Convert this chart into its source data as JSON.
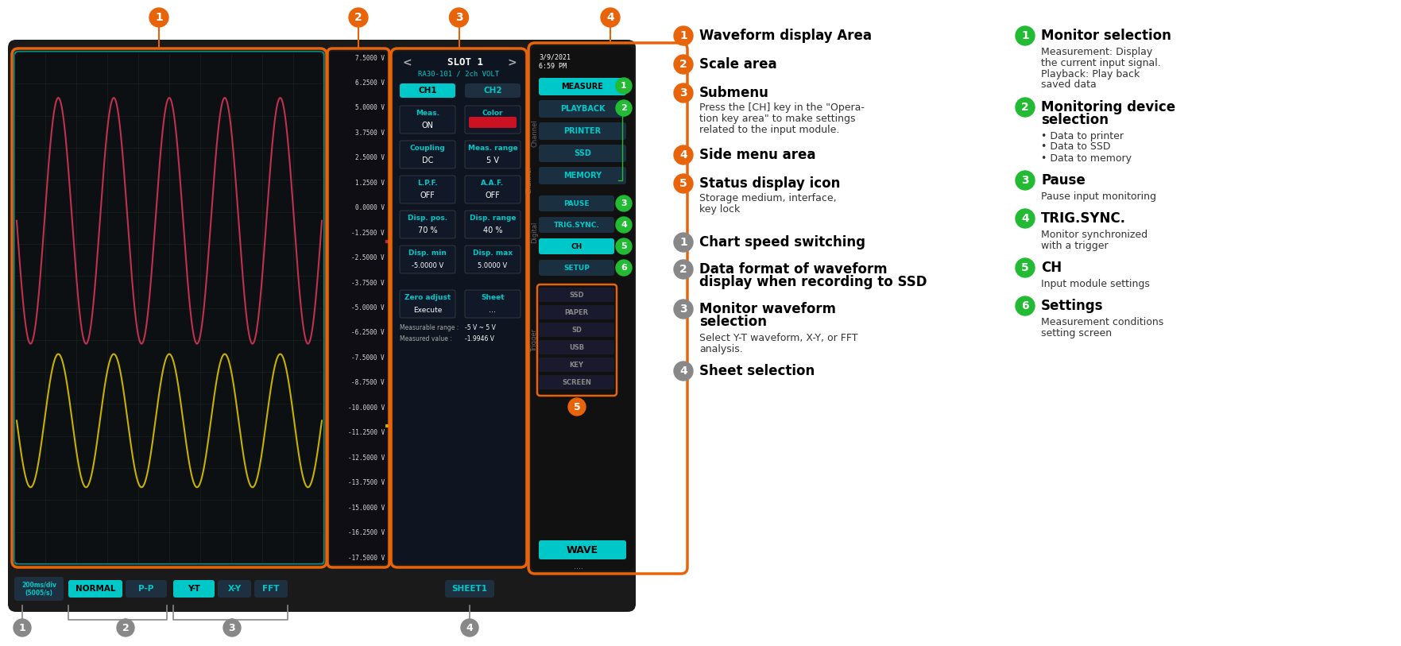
{
  "bg_color": "#ffffff",
  "cyan_color": "#00c8c8",
  "orange_color": "#e8640a",
  "green_color": "#22bb33",
  "gray_color": "#888888",
  "red_wave_color": "#c03050",
  "yellow_wave_color": "#c8b000",
  "scale_text_color": "#dddddd",
  "scale_values": [
    "7.5000 V",
    "6.2500 V",
    "5.0000 V",
    "3.7500 V",
    "2.5000 V",
    "1.2500 V",
    "0.0000 V",
    "-1.2500 V",
    "-2.5000 V",
    "-3.7500 V",
    "-5.0000 V",
    "-6.2500 V",
    "-7.5000 V",
    "-8.7500 V",
    "-10.0000 V",
    "-11.2500 V",
    "-12.5000 V",
    "-13.7500 V",
    "-15.0000 V",
    "-16.2500 V",
    "-17.5000 V"
  ],
  "orange_annotations": [
    [
      "1",
      "Waveform display Area",
      ""
    ],
    [
      "2",
      "Scale area",
      ""
    ],
    [
      "3",
      "Submenu",
      "Press the [CH] key in the \"Opera-\ntion key area\" to make settings\nrelated to the input module."
    ],
    [
      "4",
      "Side menu area",
      ""
    ],
    [
      "5",
      "Status display icon",
      "Storage medium, interface,\nkey lock"
    ]
  ],
  "gray_annotations": [
    [
      "1",
      "Chart speed switching",
      ""
    ],
    [
      "2",
      "Data format of waveform\ndisplay when recording to SSD",
      ""
    ],
    [
      "3",
      "Monitor waveform\nselection",
      "Select Y-T waveform, X-Y, or FFT\nanalysis."
    ],
    [
      "4",
      "Sheet selection",
      ""
    ]
  ],
  "green_annotations": [
    [
      "1",
      "Monitor selection",
      "Measurement: Display\nthe current input signal.\nPlayback: Play back\nsaved data"
    ],
    [
      "2",
      "Monitoring device\nselection",
      "• Data to printer\n• Data to SSD\n• Data to memory"
    ],
    [
      "3",
      "Pause",
      "Pause input monitoring"
    ],
    [
      "4",
      "TRIG.SYNC.",
      "Monitor synchronized\nwith a trigger"
    ],
    [
      "5",
      "CH",
      "Input module settings"
    ],
    [
      "6",
      "Settings",
      "Measurement conditions\nsetting screen"
    ]
  ]
}
